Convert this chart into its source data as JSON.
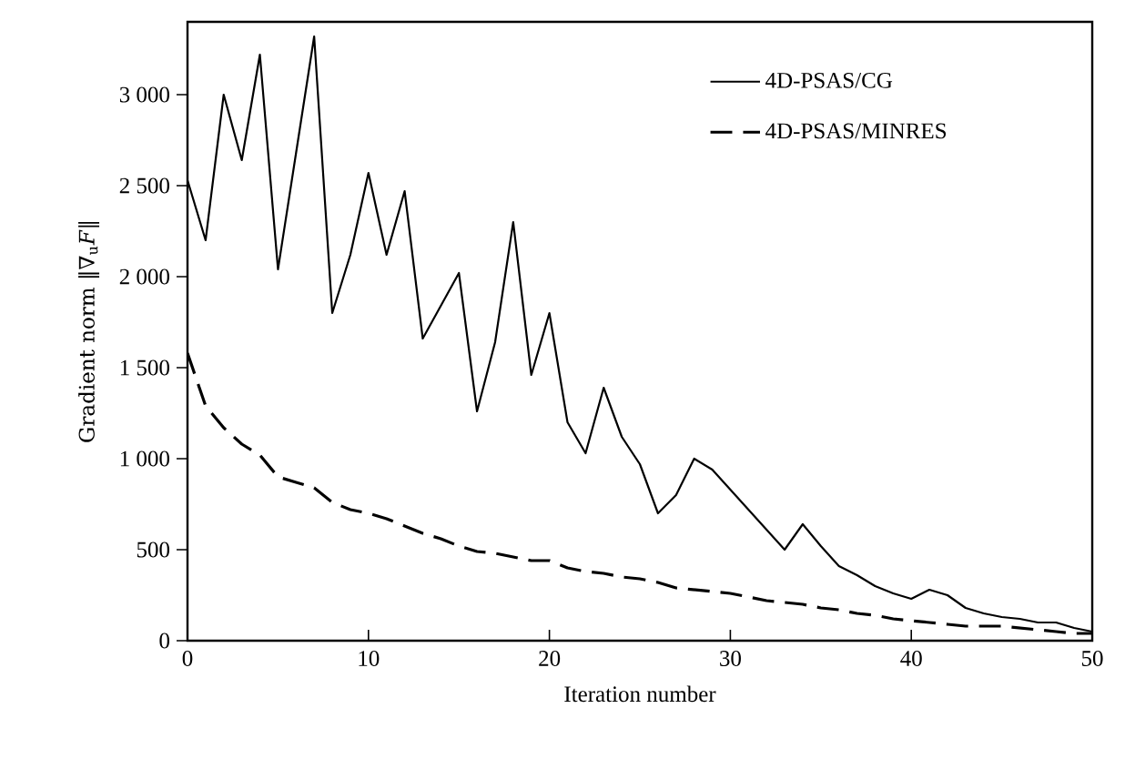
{
  "chart_data": {
    "type": "line",
    "xlabel": "Iteration number",
    "ylabel": "Gradient norm ‖∇$_{u}$*F*‖",
    "x": [
      0,
      1,
      2,
      3,
      4,
      5,
      6,
      7,
      8,
      9,
      10,
      11,
      12,
      13,
      14,
      15,
      16,
      17,
      18,
      19,
      20,
      21,
      22,
      23,
      24,
      25,
      26,
      27,
      28,
      29,
      30,
      31,
      32,
      33,
      34,
      35,
      36,
      37,
      38,
      39,
      40,
      41,
      42,
      43,
      44,
      45,
      46,
      47,
      48,
      49,
      50
    ],
    "series": [
      {
        "name": "4D-PSAS/CG",
        "color": "#000000",
        "line_style": "solid",
        "values": [
          2530,
          2200,
          3000,
          2640,
          3220,
          2040,
          2680,
          3320,
          1800,
          2120,
          2570,
          2120,
          2470,
          1660,
          1840,
          2020,
          1260,
          1640,
          2300,
          1460,
          1800,
          1200,
          1030,
          1390,
          1120,
          970,
          700,
          800,
          1000,
          940,
          830,
          720,
          610,
          500,
          640,
          520,
          410,
          360,
          300,
          260,
          230,
          280,
          250,
          180,
          150,
          130,
          120,
          100,
          100,
          70,
          50
        ]
      },
      {
        "name": "4D-PSAS/MINRES",
        "color": "#000000",
        "line_style": "dashed",
        "values": [
          1580,
          1290,
          1170,
          1080,
          1020,
          900,
          870,
          840,
          760,
          720,
          700,
          670,
          630,
          590,
          560,
          520,
          490,
          480,
          460,
          440,
          440,
          400,
          380,
          370,
          350,
          340,
          320,
          290,
          280,
          270,
          260,
          240,
          220,
          210,
          200,
          180,
          170,
          150,
          140,
          120,
          110,
          100,
          90,
          80,
          80,
          80,
          70,
          60,
          50,
          40,
          40
        ]
      }
    ],
    "xlim": [
      0,
      50
    ],
    "xticks": [
      0,
      10,
      20,
      30,
      40,
      50
    ],
    "ylim": [
      0,
      3400
    ],
    "yticks": [
      0,
      500,
      {
        "value": 1000,
        "label": "1 000"
      },
      {
        "value": 1500,
        "label": "1 500"
      },
      {
        "value": 2000,
        "label": "2 000"
      },
      {
        "value": 2500,
        "label": "2 500"
      },
      {
        "value": 3000,
        "label": "3 000"
      }
    ],
    "legend": "top right",
    "grid": false,
    "marker": "none"
  }
}
